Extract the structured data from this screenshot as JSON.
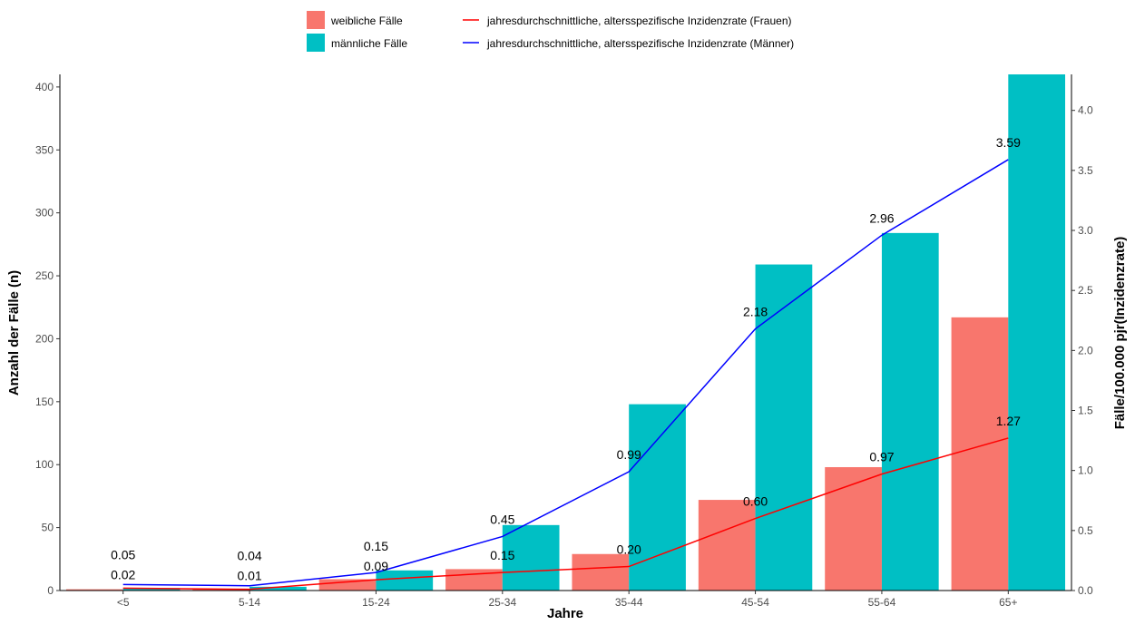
{
  "chart_data": {
    "type": "bar",
    "title": "",
    "xlabel": "Jahre",
    "ylabel": "Anzahl der Fälle (n)",
    "ylabel_right": "Fälle/100.000 pjr(Inzidenzrate)",
    "categories": [
      "<5",
      "5-14",
      "15-24",
      "25-34",
      "35-44",
      "45-54",
      "55-64",
      "65+"
    ],
    "ylim": [
      0,
      410
    ],
    "y_ticks": [
      "0",
      "50",
      "100",
      "150",
      "200",
      "250",
      "300",
      "350",
      "400"
    ],
    "y_right_lim": [
      0,
      4.3
    ],
    "y_right_ticks": [
      "0.0",
      "0.5",
      "1.0",
      "1.5",
      "2.0",
      "2.5",
      "3.0",
      "3.5",
      "4.0"
    ],
    "grid": false,
    "legend_position": "top",
    "series": [
      {
        "name": "weibliche Fälle",
        "kind": "bar",
        "axis": "left",
        "color": "#F8766D",
        "values": [
          1,
          1,
          9,
          17,
          29,
          72,
          98,
          217
        ]
      },
      {
        "name": "männliche Fälle",
        "kind": "bar",
        "axis": "left",
        "color": "#00BFC4",
        "values": [
          2,
          3,
          16,
          52,
          148,
          259,
          284,
          410
        ]
      },
      {
        "name": "jahresdurchschnittliche, altersspezifische Inzidenzrate (Frauen)",
        "kind": "line",
        "axis": "right",
        "color": "#FF0000",
        "values": [
          0.02,
          0.01,
          0.09,
          0.15,
          0.2,
          0.6,
          0.97,
          1.27
        ],
        "labels": [
          "0.02",
          "0.01",
          "0.09",
          "0.15",
          "0.20",
          "0.60",
          "0.97",
          "1.27"
        ]
      },
      {
        "name": "jahresdurchschnittliche, altersspezifische Inzidenzrate (Männer)",
        "kind": "line",
        "axis": "right",
        "color": "#0000FF",
        "values": [
          0.05,
          0.04,
          0.15,
          0.45,
          0.99,
          2.18,
          2.96,
          3.59
        ],
        "labels": [
          "0.05",
          "0.04",
          "0.15",
          "0.45",
          "0.99",
          "2.18",
          "2.96",
          "3.59"
        ]
      }
    ]
  }
}
